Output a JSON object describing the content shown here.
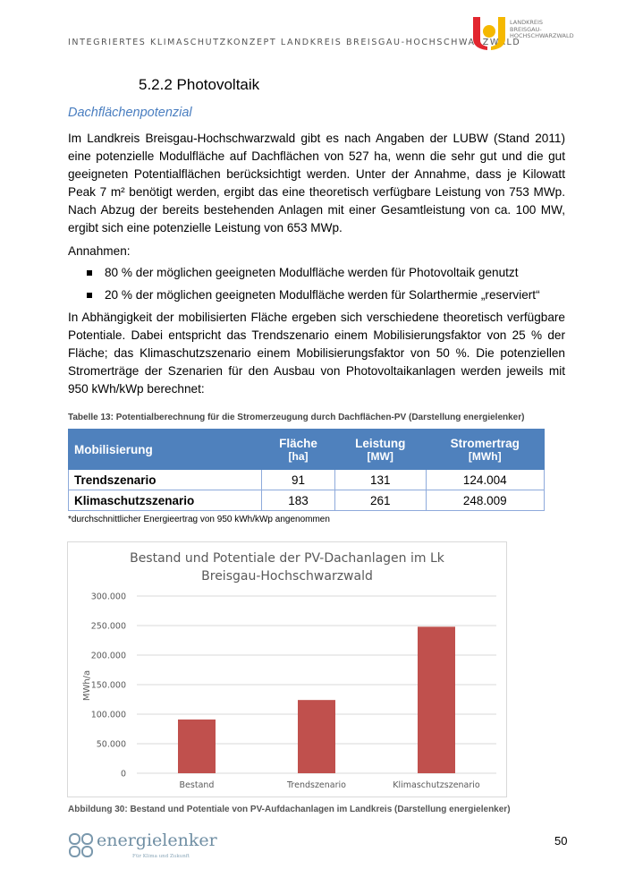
{
  "header": {
    "title": "INTEGRIERTES KLIMASCHUTZKONZEPT LANDKREIS BREISGAU-HOCHSCHWARZWALD",
    "logo_text": [
      "LANDKREIS",
      "BREISGAU-",
      "HOCHSCHWARZWALD"
    ]
  },
  "section": {
    "heading": "5.2.2  Photovoltaik",
    "subheading": "Dachflächenpotenzial"
  },
  "paragraphs": [
    "Im Landkreis Breisgau-Hochschwarzwald gibt es nach Angaben der LUBW (Stand 2011) eine potenzielle Modulfläche auf Dachflächen von 527 ha, wenn die sehr gut und die gut geeigneten Potentialflächen berücksichtigt werden. Unter der Annahme, dass je Kilowatt Peak 7 m² benötigt werden, ergibt das eine theoretisch verfügbare Leistung von 753 MWp. Nach Abzug der bereits bestehenden Anlagen mit einer Gesamtleistung von ca. 100 MW, ergibt sich eine potenzielle Leistung von 653 MWp.",
    "Annahmen:",
    "In Abhängigkeit der mobilisierten Fläche ergeben sich verschiedene theoretisch verfügbare Potentiale. Dabei entspricht das Trendszenario einem Mobilisierungsfaktor von 25 % der Fläche; das Klimaschutzszenario einem Mobilisierungsfaktor von 50 %. Die potenziellen Stromerträge der Szenarien für den Ausbau von Photovoltaikanlagen werden jeweils mit 950 kWh/kWp berechnet:"
  ],
  "bullets": [
    "80 % der möglichen geeigneten Modulfläche werden für Photovoltaik genutzt",
    "20 % der möglichen geeigneten Modulfläche werden für Solarthermie „reserviert“"
  ],
  "table": {
    "caption": "Tabelle 13: Potentialberechnung für die Stromerzeugung durch Dachflächen-PV (Darstellung energielenker)",
    "headers": [
      {
        "label": "Mobilisierung",
        "unit": ""
      },
      {
        "label": "Fläche",
        "unit": "[ha]"
      },
      {
        "label": "Leistung",
        "unit": "[MW]"
      },
      {
        "label": "Stromertrag",
        "unit": "[MWh]"
      }
    ],
    "rows": [
      [
        "Trendszenario",
        "91",
        "131",
        "124.004"
      ],
      [
        "Klimaschutzszenario",
        "183",
        "261",
        "248.009"
      ]
    ],
    "note": "*durchschnittlicher Energieertrag von 950 kWh/kWp angenommen"
  },
  "chart_data": {
    "type": "bar",
    "title": "Bestand und Potentiale der PV-Dachanlagen im Lk Breisgau-Hochschwarzwald",
    "title_lines": [
      "Bestand und Potentiale der PV-Dachanlagen im Lk",
      "Breisgau-Hochschwarzwald"
    ],
    "categories": [
      "Bestand",
      "Trendszenario",
      "Klimaschutzszenario"
    ],
    "values": [
      91000,
      124004,
      248009
    ],
    "xlabel": "",
    "ylabel": "MWh/a",
    "ylim": [
      0,
      300000
    ],
    "yticks": [
      "0",
      "50.000",
      "100.000",
      "150.000",
      "200.000",
      "250.000",
      "300.000"
    ],
    "grid": true,
    "color": "#c0504d"
  },
  "figure_caption": "Abbildung 30: Bestand und Potentiale von PV-Aufdachanlagen im Landkreis (Darstellung energielenker)",
  "footer": {
    "brand": "energielenker",
    "slogan": "Für Klima und Zukunft",
    "page_number": "50"
  }
}
